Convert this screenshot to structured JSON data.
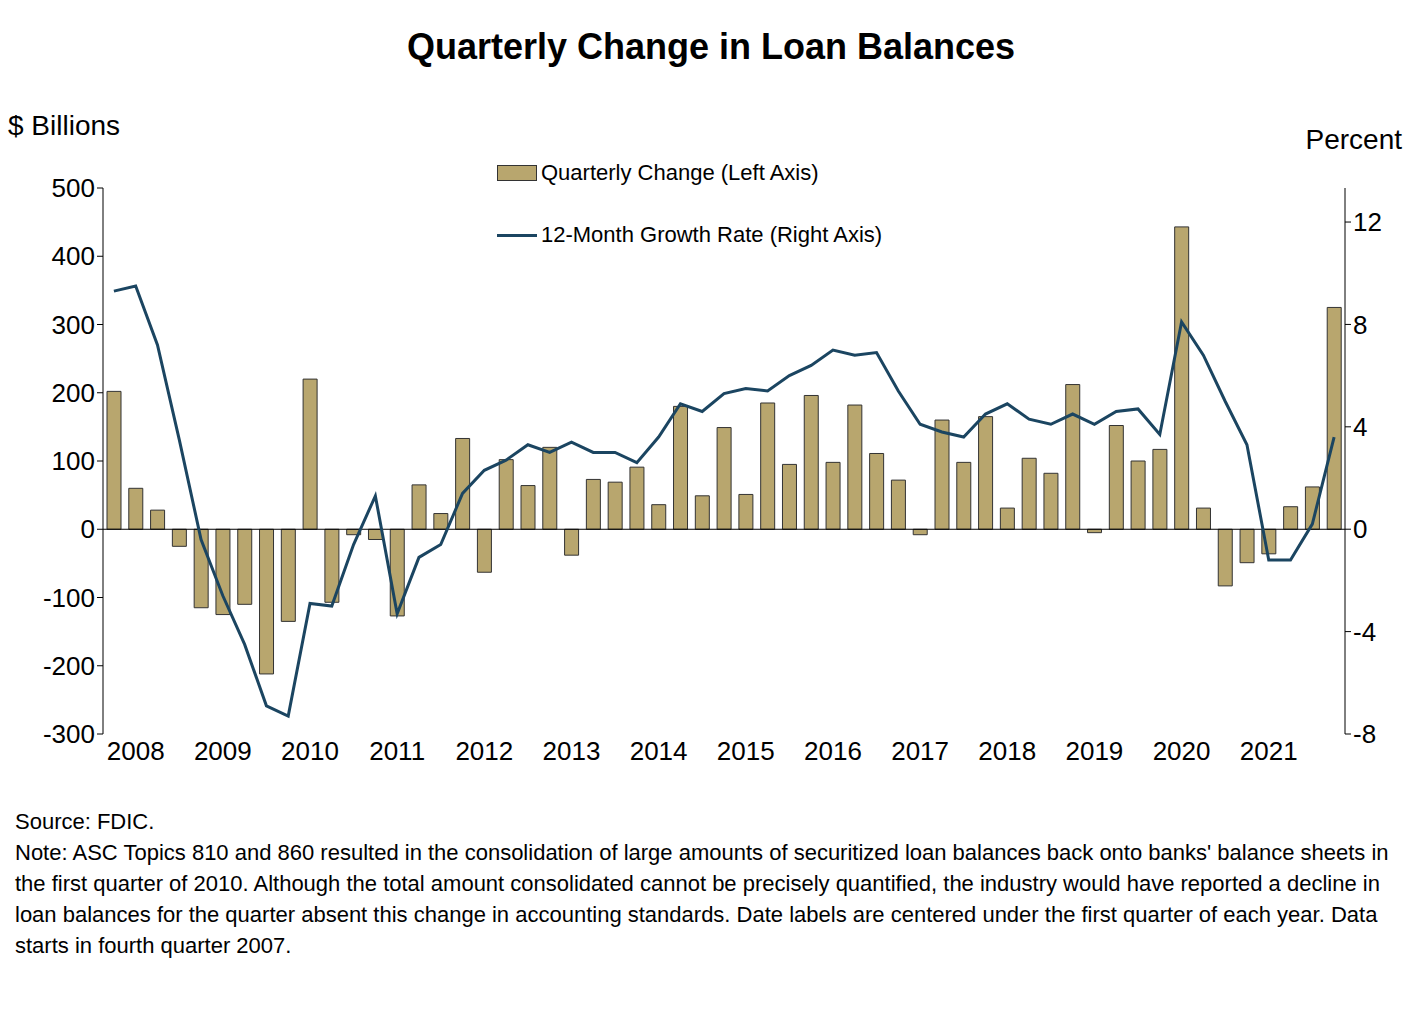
{
  "chart_data": {
    "type": "bar",
    "title": "Quarterly Change in Loan Balances",
    "y_label": "$ Billions",
    "y2_label": "Percent",
    "source": "Source: FDIC.",
    "note": "Note: ASC Topics 810 and 860 resulted in the consolidation of large amounts of securitized loan balances back onto banks' balance sheets in the first quarter of 2010.  Although the total amount consolidated cannot be precisely quantified, the industry would have reported a decline in loan balances for the quarter absent this change in accounting standards. Date labels are centered under the first quarter of each year. Data starts in fourth quarter 2007.",
    "categories": [
      null,
      "2008",
      null,
      null,
      null,
      "2009",
      null,
      null,
      null,
      "2010",
      null,
      null,
      null,
      "2011",
      null,
      null,
      null,
      "2012",
      null,
      null,
      null,
      "2013",
      null,
      null,
      null,
      "2014",
      null,
      null,
      null,
      "2015",
      null,
      null,
      null,
      "2016",
      null,
      null,
      null,
      "2017",
      null,
      null,
      null,
      "2018",
      null,
      null,
      null,
      "2019",
      null,
      null,
      null,
      "2020",
      null,
      null,
      null,
      "2021",
      null,
      null,
      null
    ],
    "series": [
      {
        "name": "Quarterly Change (Left Axis)",
        "type": "bar",
        "color": "#b8a66e",
        "values": [
          202,
          60,
          28,
          -25,
          -115,
          -125,
          -110,
          -212,
          -135,
          220,
          -107,
          -8,
          -15,
          -127,
          65,
          23,
          133,
          -63,
          102,
          64,
          120,
          -38,
          73,
          69,
          91,
          36,
          180,
          49,
          149,
          51,
          185,
          95,
          196,
          98,
          182,
          111,
          72,
          -8,
          160,
          98,
          165,
          31,
          104,
          82,
          212,
          -5,
          152,
          100,
          117,
          443,
          31,
          -83,
          -49,
          -36,
          33,
          62,
          325
        ]
      },
      {
        "name": "12-Month Growth Rate (Right Axis)",
        "type": "line",
        "axis": "y2",
        "color": "#1b4561",
        "values": [
          9.3,
          9.5,
          7.2,
          3.5,
          -0.4,
          -2.6,
          -4.5,
          -6.9,
          -7.3,
          -2.9,
          -3.0,
          -0.6,
          1.3,
          -3.3,
          -1.1,
          -0.6,
          1.4,
          2.3,
          2.7,
          3.3,
          3.0,
          3.4,
          3.0,
          3.0,
          2.6,
          3.6,
          4.9,
          4.6,
          5.3,
          5.5,
          5.4,
          6.0,
          6.4,
          7.0,
          6.8,
          6.9,
          5.4,
          4.1,
          3.8,
          3.6,
          4.5,
          4.9,
          4.3,
          4.1,
          4.5,
          4.1,
          4.6,
          4.7,
          3.7,
          8.1,
          6.8,
          5.0,
          3.3,
          -1.2,
          -1.2,
          0.2,
          3.6
        ]
      }
    ],
    "ylim": [
      -300,
      500
    ],
    "yticks": [
      -300,
      -200,
      -100,
      0,
      100,
      200,
      300,
      400,
      500
    ],
    "y2lim": [
      -8,
      13.33
    ],
    "y2ticks": [
      -8,
      -4,
      0,
      4,
      8,
      12
    ],
    "grid": false,
    "legend": "top"
  }
}
